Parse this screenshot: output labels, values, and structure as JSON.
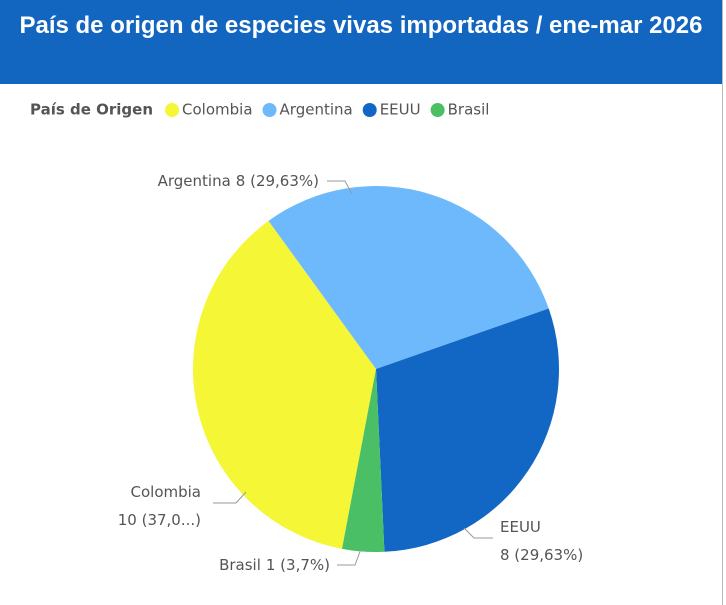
{
  "chart_data": {
    "type": "pie",
    "title": "País de origen de especies vivas importadas / ene-mar 2026",
    "legend_title": "País de Origen",
    "categories": [
      "Colombia",
      "Argentina",
      "EEUU",
      "Brasil"
    ],
    "values": [
      10,
      8,
      8,
      1
    ],
    "value_labels": [
      "10 (37,0...)",
      "8 (29,63%)",
      "8 (29,63%)",
      "1 (3,7%)"
    ],
    "colors": [
      "#f4f636",
      "#6db9fc",
      "#1267c4",
      "#4bbf65"
    ],
    "legend": "top-left"
  }
}
